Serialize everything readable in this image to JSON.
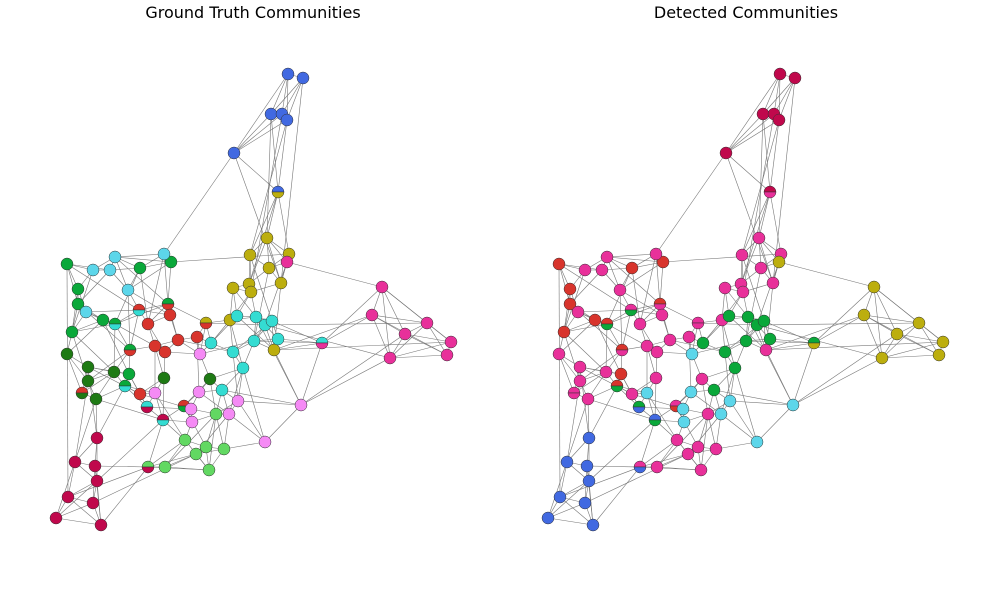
{
  "panels": [
    {
      "title": "Ground Truth Communities"
    },
    {
      "title": "Detected Communities"
    }
  ]
}
